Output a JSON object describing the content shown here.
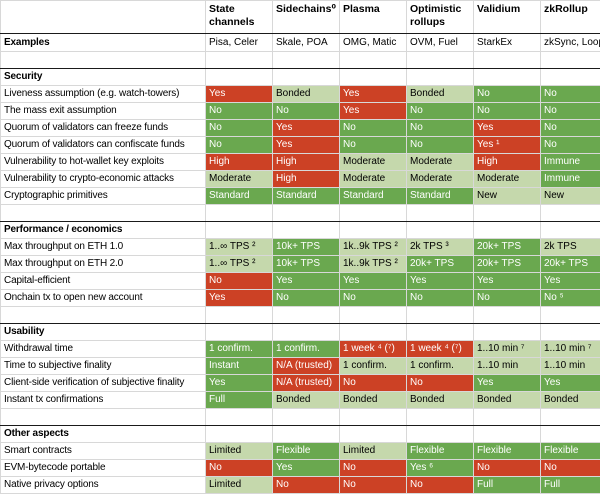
{
  "palette": {
    "bad": {
      "bg": "#cc4125",
      "fg": "#ffffff"
    },
    "good": {
      "bg": "#6aa84f",
      "fg": "#ffffff"
    },
    "neutral": {
      "bg": "#c5d8ac",
      "fg": "#000000"
    }
  },
  "grid_color": "#d8d8d8",
  "section_border_color": "#1a1a1a",
  "table": {
    "columns": [
      {
        "label": "State channels"
      },
      {
        "label": "Sidechains⁰"
      },
      {
        "label": "Plasma"
      },
      {
        "label": "Optimistic rollups"
      },
      {
        "label": "Validium"
      },
      {
        "label": "zkRollup"
      }
    ],
    "examples": {
      "label": "Examples",
      "values": [
        "Pisa, Celer",
        "Skale, POA",
        "OMG, Matic",
        "OVM, Fuel",
        "StarkEx",
        "zkSync, Loopring"
      ]
    },
    "sections": [
      {
        "title": "Security",
        "rows": [
          {
            "label": "Liveness assumption (e.g. watch-towers)",
            "cells": [
              {
                "text": "Yes",
                "tone": "bad"
              },
              {
                "text": "Bonded",
                "tone": "neutral"
              },
              {
                "text": "Yes",
                "tone": "bad"
              },
              {
                "text": "Bonded",
                "tone": "neutral"
              },
              {
                "text": "No",
                "tone": "good"
              },
              {
                "text": "No",
                "tone": "good"
              }
            ]
          },
          {
            "label": "The mass exit assumption",
            "cells": [
              {
                "text": "No",
                "tone": "good"
              },
              {
                "text": "No",
                "tone": "good"
              },
              {
                "text": "Yes",
                "tone": "bad"
              },
              {
                "text": "No",
                "tone": "good"
              },
              {
                "text": "No",
                "tone": "good"
              },
              {
                "text": "No",
                "tone": "good"
              }
            ]
          },
          {
            "label": "Quorum of validators can freeze funds",
            "cells": [
              {
                "text": "No",
                "tone": "good"
              },
              {
                "text": "Yes",
                "tone": "bad"
              },
              {
                "text": "No",
                "tone": "good"
              },
              {
                "text": "No",
                "tone": "good"
              },
              {
                "text": "Yes",
                "tone": "bad"
              },
              {
                "text": "No",
                "tone": "good"
              }
            ]
          },
          {
            "label": "Quorum of validators can confiscate funds",
            "cells": [
              {
                "text": "No",
                "tone": "good"
              },
              {
                "text": "Yes",
                "tone": "bad"
              },
              {
                "text": "No",
                "tone": "good"
              },
              {
                "text": "No",
                "tone": "good"
              },
              {
                "text": "Yes ¹",
                "tone": "bad"
              },
              {
                "text": "No",
                "tone": "good"
              }
            ]
          },
          {
            "label": "Vulnerability to hot-wallet key exploits",
            "cells": [
              {
                "text": "High",
                "tone": "bad"
              },
              {
                "text": "High",
                "tone": "bad"
              },
              {
                "text": "Moderate",
                "tone": "neutral"
              },
              {
                "text": "Moderate",
                "tone": "neutral"
              },
              {
                "text": "High",
                "tone": "bad"
              },
              {
                "text": "Immune",
                "tone": "good"
              }
            ]
          },
          {
            "label": "Vulnerability to crypto-economic attacks",
            "cells": [
              {
                "text": "Moderate",
                "tone": "neutral"
              },
              {
                "text": "High",
                "tone": "bad"
              },
              {
                "text": "Moderate",
                "tone": "neutral"
              },
              {
                "text": "Moderate",
                "tone": "neutral"
              },
              {
                "text": "Moderate",
                "tone": "neutral"
              },
              {
                "text": "Immune",
                "tone": "good"
              }
            ]
          },
          {
            "label": "Cryptographic primitives",
            "cells": [
              {
                "text": "Standard",
                "tone": "good"
              },
              {
                "text": "Standard",
                "tone": "good"
              },
              {
                "text": "Standard",
                "tone": "good"
              },
              {
                "text": "Standard",
                "tone": "good"
              },
              {
                "text": "New",
                "tone": "neutral"
              },
              {
                "text": "New",
                "tone": "neutral"
              }
            ]
          }
        ]
      },
      {
        "title": "Performance / economics",
        "rows": [
          {
            "label": "Max throughput on ETH 1.0",
            "cells": [
              {
                "text": "1..∞ TPS ²",
                "tone": "neutral"
              },
              {
                "text": "10k+ TPS",
                "tone": "good"
              },
              {
                "text": "1k..9k TPS ²",
                "tone": "neutral"
              },
              {
                "text": "2k TPS ³",
                "tone": "neutral"
              },
              {
                "text": "20k+ TPS",
                "tone": "good"
              },
              {
                "text": "2k TPS",
                "tone": "neutral"
              }
            ]
          },
          {
            "label": "Max throughput on ETH 2.0",
            "cells": [
              {
                "text": "1..∞ TPS ²",
                "tone": "neutral"
              },
              {
                "text": "10k+ TPS",
                "tone": "good"
              },
              {
                "text": "1k..9k TPS ²",
                "tone": "neutral"
              },
              {
                "text": "20k+ TPS",
                "tone": "good"
              },
              {
                "text": "20k+ TPS",
                "tone": "good"
              },
              {
                "text": "20k+ TPS",
                "tone": "good"
              }
            ]
          },
          {
            "label": "Capital-efficient",
            "cells": [
              {
                "text": "No",
                "tone": "bad"
              },
              {
                "text": "Yes",
                "tone": "good"
              },
              {
                "text": "Yes",
                "tone": "good"
              },
              {
                "text": "Yes",
                "tone": "good"
              },
              {
                "text": "Yes",
                "tone": "good"
              },
              {
                "text": "Yes",
                "tone": "good"
              }
            ]
          },
          {
            "label": "Onchain tx to open new account",
            "cells": [
              {
                "text": "Yes",
                "tone": "bad"
              },
              {
                "text": "No",
                "tone": "good"
              },
              {
                "text": "No",
                "tone": "good"
              },
              {
                "text": "No",
                "tone": "good"
              },
              {
                "text": "No",
                "tone": "good"
              },
              {
                "text": "No ⁵",
                "tone": "good"
              }
            ]
          }
        ]
      },
      {
        "title": "Usability",
        "rows": [
          {
            "label": "Withdrawal time",
            "cells": [
              {
                "text": "1 confirm.",
                "tone": "good"
              },
              {
                "text": "1 confirm.",
                "tone": "good"
              },
              {
                "text": "1 week ⁴ (⁷)",
                "tone": "bad"
              },
              {
                "text": "1 week ⁴ (⁷)",
                "tone": "bad"
              },
              {
                "text": "1..10 min ⁷",
                "tone": "neutral"
              },
              {
                "text": "1..10 min ⁷",
                "tone": "neutral"
              }
            ]
          },
          {
            "label": "Time to subjective finality",
            "cells": [
              {
                "text": "Instant",
                "tone": "good"
              },
              {
                "text": "N/A (trusted)",
                "tone": "bad"
              },
              {
                "text": "1 confirm.",
                "tone": "neutral"
              },
              {
                "text": "1 confirm.",
                "tone": "neutral"
              },
              {
                "text": "1..10 min",
                "tone": "neutral"
              },
              {
                "text": "1..10 min",
                "tone": "neutral"
              }
            ]
          },
          {
            "label": "Client-side verification of subjective finality",
            "cells": [
              {
                "text": "Yes",
                "tone": "good"
              },
              {
                "text": "N/A (trusted)",
                "tone": "bad"
              },
              {
                "text": "No",
                "tone": "bad"
              },
              {
                "text": "No",
                "tone": "bad"
              },
              {
                "text": "Yes",
                "tone": "good"
              },
              {
                "text": "Yes",
                "tone": "good"
              }
            ]
          },
          {
            "label": "Instant tx confirmations",
            "cells": [
              {
                "text": "Full",
                "tone": "good"
              },
              {
                "text": "Bonded",
                "tone": "neutral"
              },
              {
                "text": "Bonded",
                "tone": "neutral"
              },
              {
                "text": "Bonded",
                "tone": "neutral"
              },
              {
                "text": "Bonded",
                "tone": "neutral"
              },
              {
                "text": "Bonded",
                "tone": "neutral"
              }
            ]
          }
        ]
      },
      {
        "title": "Other aspects",
        "rows": [
          {
            "label": "Smart contracts",
            "cells": [
              {
                "text": "Limited",
                "tone": "neutral"
              },
              {
                "text": "Flexible",
                "tone": "good"
              },
              {
                "text": "Limited",
                "tone": "neutral"
              },
              {
                "text": "Flexible",
                "tone": "good"
              },
              {
                "text": "Flexible",
                "tone": "good"
              },
              {
                "text": "Flexible",
                "tone": "good"
              }
            ]
          },
          {
            "label": "EVM-bytecode portable",
            "cells": [
              {
                "text": "No",
                "tone": "bad"
              },
              {
                "text": "Yes",
                "tone": "good"
              },
              {
                "text": "No",
                "tone": "bad"
              },
              {
                "text": "Yes ⁶",
                "tone": "good"
              },
              {
                "text": "No",
                "tone": "bad"
              },
              {
                "text": "No",
                "tone": "bad"
              }
            ]
          },
          {
            "label": "Native privacy options",
            "cells": [
              {
                "text": "Limited",
                "tone": "neutral"
              },
              {
                "text": "No",
                "tone": "bad"
              },
              {
                "text": "No",
                "tone": "bad"
              },
              {
                "text": "No",
                "tone": "bad"
              },
              {
                "text": "Full",
                "tone": "good"
              },
              {
                "text": "Full",
                "tone": "good"
              }
            ]
          }
        ]
      }
    ]
  }
}
